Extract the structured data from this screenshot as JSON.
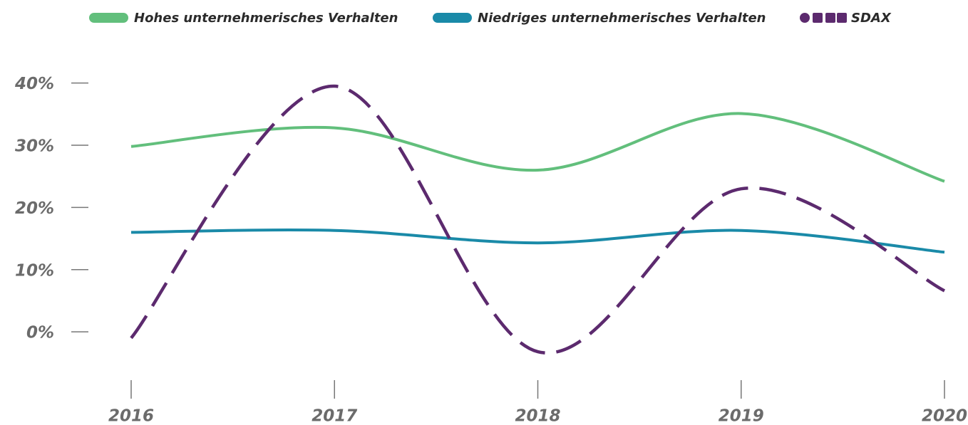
{
  "chart_data": {
    "type": "line",
    "x": [
      2016,
      2017,
      2018,
      2019,
      2020
    ],
    "xlim": [
      2016,
      2020
    ],
    "xticks": [
      2016,
      2017,
      2018,
      2019,
      2020
    ],
    "ylim": [
      -8,
      45
    ],
    "yticks": [
      {
        "value": 0,
        "label": "0%"
      },
      {
        "value": 10,
        "label": "10%"
      },
      {
        "value": 20,
        "label": "20%"
      },
      {
        "value": 30,
        "label": "30%"
      },
      {
        "value": 40,
        "label": "40%"
      }
    ],
    "series": [
      {
        "name": "Hohes unternehmerisches Verhalten",
        "color": "#62bf7c",
        "linestyle": "solid",
        "values": [
          29.8,
          32.8,
          26.0,
          35.1,
          24.2
        ]
      },
      {
        "name": "Niedriges unternehmerisches Verhalten",
        "color": "#1a8aa8",
        "linestyle": "solid",
        "values": [
          16.0,
          16.3,
          14.3,
          16.3,
          12.8
        ]
      },
      {
        "name": "SDAX",
        "color": "#5c2a6e",
        "linestyle": "dashed",
        "values": [
          -1.0,
          39.5,
          -3.2,
          23.0,
          6.6
        ]
      }
    ]
  }
}
